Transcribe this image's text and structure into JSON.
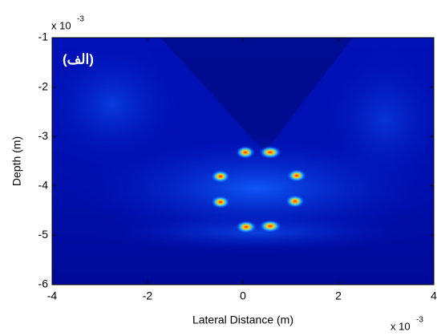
{
  "chart_data": {
    "type": "image",
    "annotation": "(الف)",
    "x_label": "Lateral Distance (m)",
    "y_label": "Depth (m)",
    "x_multiplier": {
      "base": "x 10",
      "exponent": "-3"
    },
    "y_multiplier": {
      "base": "x 10",
      "exponent": "-3"
    },
    "xlim": [
      -4,
      4
    ],
    "xticks": [
      -4,
      -2,
      0,
      2,
      4
    ],
    "ylim": [
      -6,
      -1
    ],
    "yticks": [
      -6,
      -5,
      -4,
      -3,
      -2,
      -1
    ]
  }
}
